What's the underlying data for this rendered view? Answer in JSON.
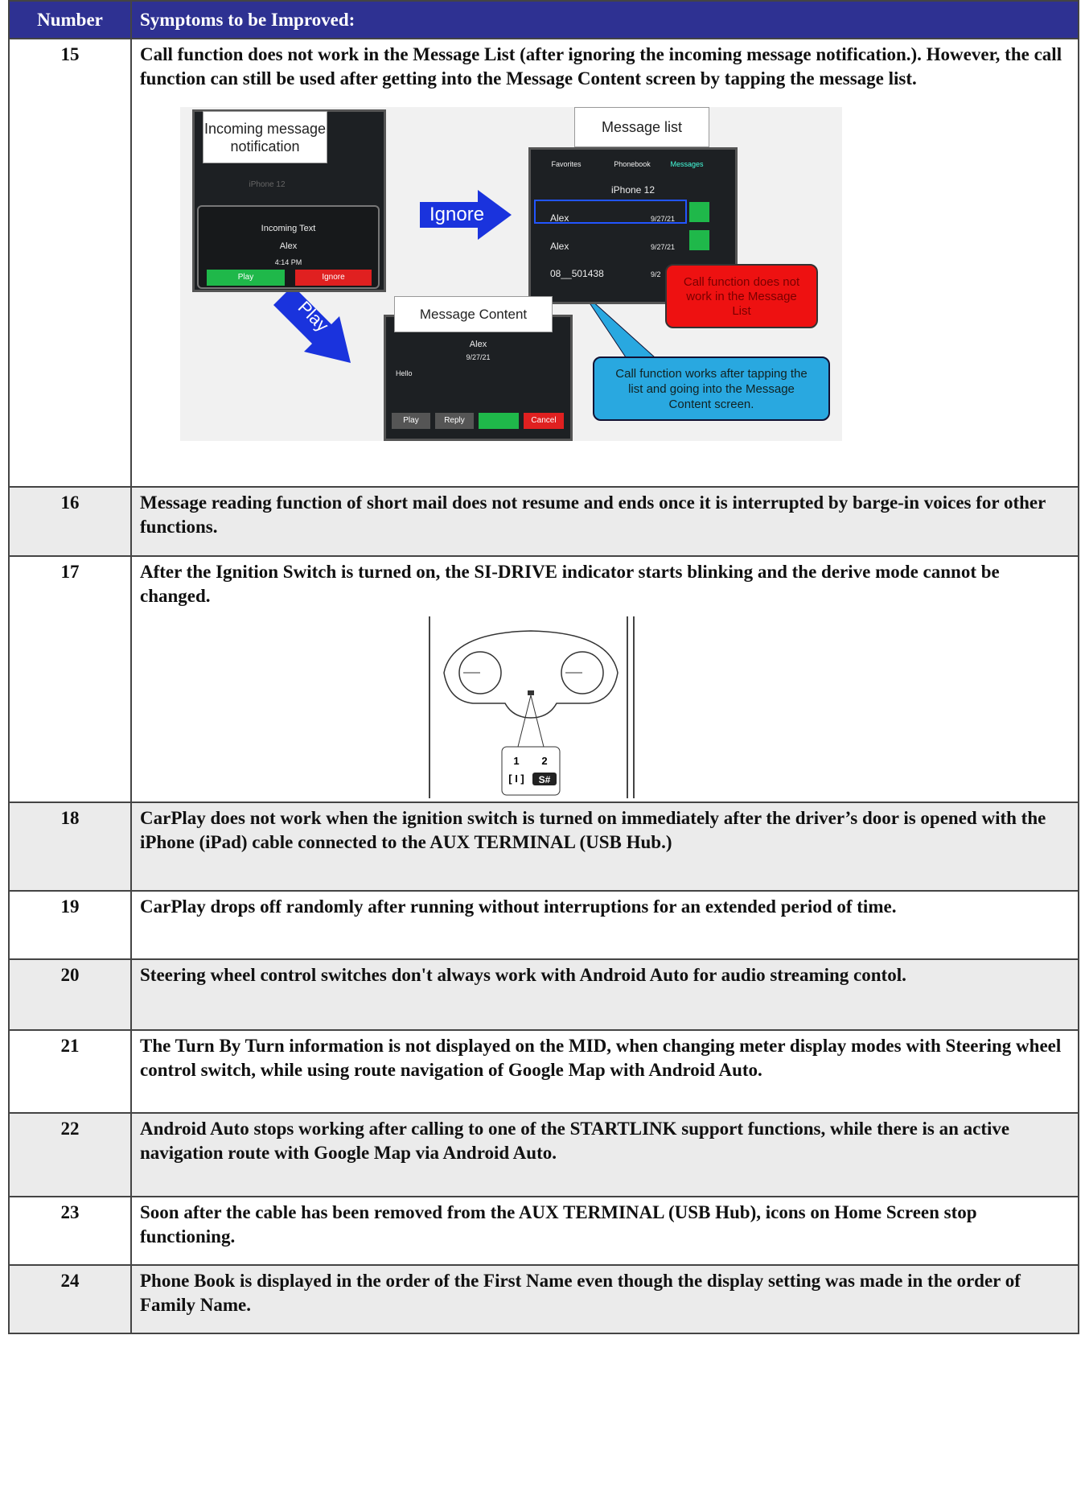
{
  "table": {
    "header": [
      "Number",
      "Symptoms to be Improved:"
    ],
    "rows": [
      [
        "15",
        "Call function does not work in the Message List (after ignoring the incoming message notification.). However, the call function can still be used after getting into the Message Content screen by tapping the message list."
      ],
      [
        "16",
        "Message reading function of short mail does not resume and ends once it is interrupted by barge-in voices for other functions."
      ],
      [
        "17",
        "After the Ignition Switch is turned on, the SI-DRIVE indicator starts blinking and the derive mode cannot be changed."
      ],
      [
        "18",
        "CarPlay does not work when the ignition switch is turned on immediately after the driver’s door is opened with the iPhone (iPad) cable connected to the AUX TERMINAL (USB Hub.)"
      ],
      [
        "19",
        "CarPlay drops off randomly after running without interruptions for an extended period of time."
      ],
      [
        "20",
        "Steering wheel control switches don't always work with Android Auto for audio streaming contol."
      ],
      [
        "21",
        "The Turn By Turn information is not displayed on the MID, when changing meter display modes with Steering wheel control switch, while using route navigation of Google Map with Android Auto."
      ],
      [
        "22",
        "Android Auto stops working after calling to one of the STARTLINK support functions, while there is an active navigation route with Google Map via Android Auto."
      ],
      [
        "23",
        "Soon after the cable has been removed from the AUX TERMINAL (USB Hub), icons on Home Screen stop functioning."
      ],
      [
        "24",
        "Phone Book is displayed in the order of the First Name even though the display setting was made in the order of Family Name."
      ]
    ]
  },
  "figure_15": {
    "notification": {
      "callout": "Incoming message notification",
      "phone": "iPhone 12",
      "heading": "Incoming Text",
      "sender": "Alex",
      "time": "4:14 PM",
      "buttons": [
        "Play",
        "Ignore"
      ]
    },
    "arrows": [
      "Ignore",
      "Play"
    ],
    "message_list": {
      "callout": "Message list",
      "tabs": [
        "Favorites",
        "Phonebook",
        "Messages"
      ],
      "phone": "iPhone 12",
      "items": [
        [
          "Alex",
          "9/27/21"
        ],
        [
          "Alex",
          "9/27/21"
        ],
        [
          "08__501438",
          "9/2"
        ]
      ]
    },
    "red_callout": "Call function does not work in the Message List",
    "blue_callout": "Call function works after tapping the list and going into the Message Content screen.",
    "message_content": {
      "callout": "Message Content",
      "sender": "Alex",
      "date": "9/27/21",
      "body": "Hello",
      "buttons": [
        "Play",
        "Reply",
        "Cancel"
      ]
    }
  },
  "figure_17": {
    "labels": [
      "1",
      "2",
      "[ I ]",
      "S#"
    ]
  }
}
